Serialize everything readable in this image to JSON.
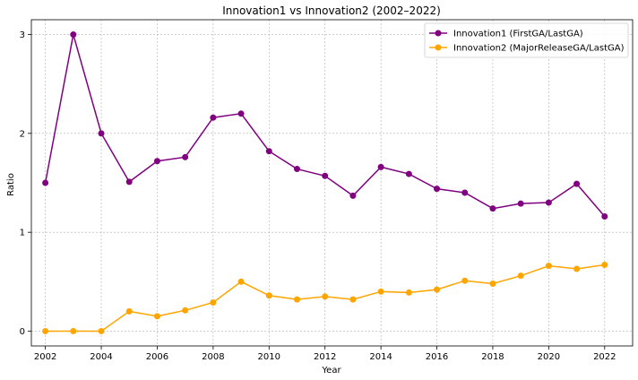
{
  "chart_data": {
    "type": "line",
    "title": "Innovation1 vs Innovation2 (2002–2022)",
    "xlabel": "Year",
    "ylabel": "Ratio",
    "x": [
      2002,
      2003,
      2004,
      2005,
      2006,
      2007,
      2008,
      2009,
      2010,
      2011,
      2012,
      2013,
      2014,
      2015,
      2016,
      2017,
      2018,
      2019,
      2020,
      2021,
      2022
    ],
    "xticks": [
      "2002",
      "2004",
      "2006",
      "2008",
      "2010",
      "2012",
      "2014",
      "2016",
      "2018",
      "2020",
      "2022"
    ],
    "yticks": [
      "0",
      "1",
      "2",
      "3"
    ],
    "xlim": [
      2001.5,
      2023
    ],
    "ylim": [
      -0.15,
      3.15
    ],
    "grid": true,
    "legend_position": "top-right",
    "series": [
      {
        "name": "Innovation1 (FirstGA/LastGA)",
        "color": "#800080",
        "values": [
          1.5,
          3.0,
          2.0,
          1.51,
          1.72,
          1.76,
          2.16,
          2.2,
          1.82,
          1.64,
          1.57,
          1.37,
          1.66,
          1.59,
          1.44,
          1.4,
          1.24,
          1.29,
          1.3,
          1.49,
          1.16
        ]
      },
      {
        "name": "Innovation2 (MajorReleaseGA/LastGA)",
        "color": "#FFA500",
        "values": [
          0.0,
          0.0,
          0.0,
          0.2,
          0.15,
          0.21,
          0.29,
          0.5,
          0.36,
          0.32,
          0.35,
          0.32,
          0.4,
          0.39,
          0.42,
          0.51,
          0.48,
          0.56,
          0.66,
          0.63,
          0.67
        ]
      }
    ]
  }
}
